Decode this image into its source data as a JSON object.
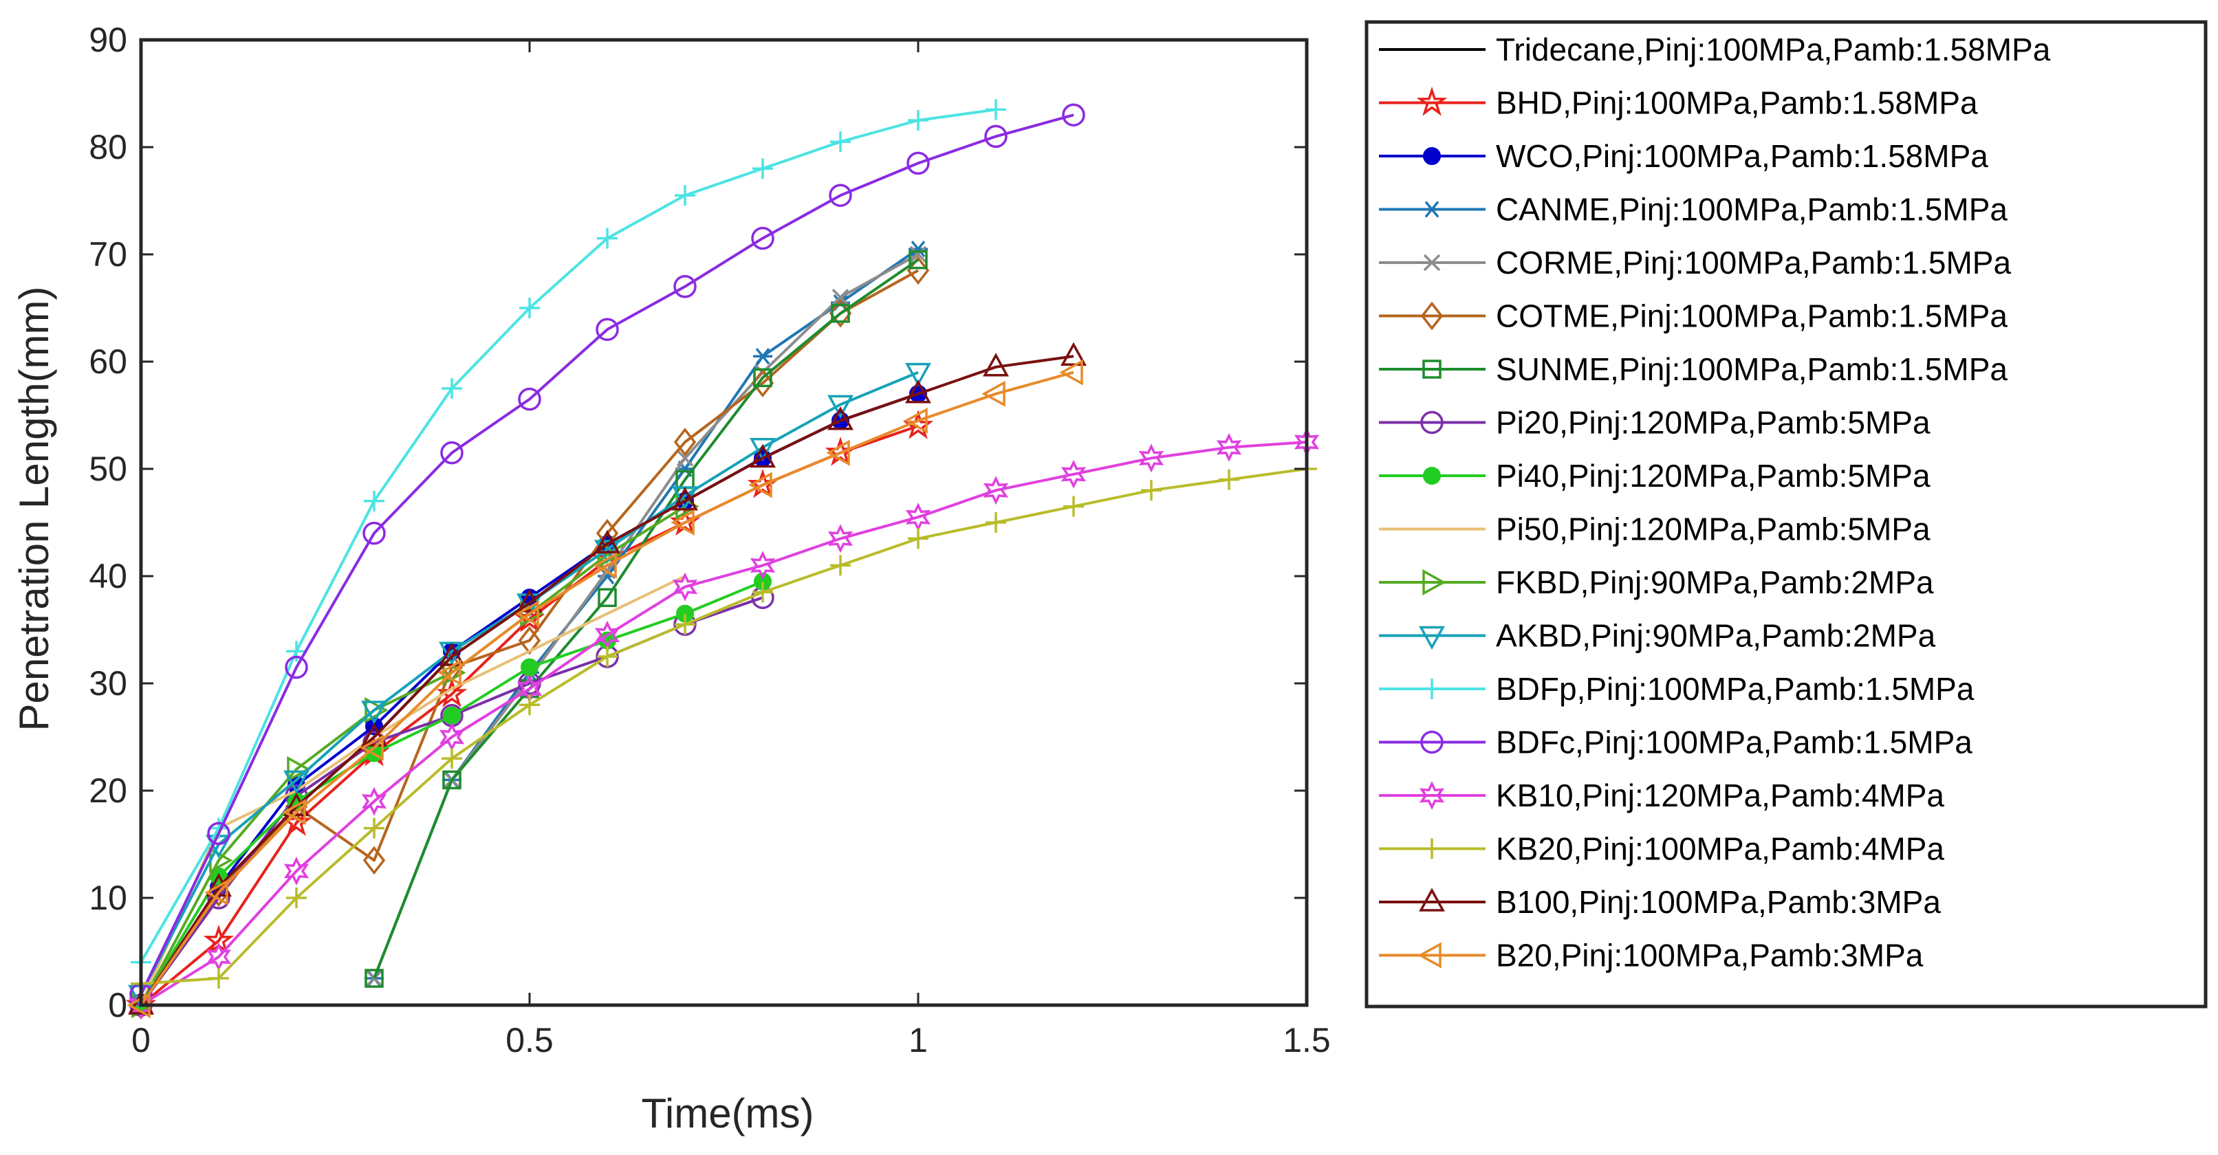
{
  "chart_data": {
    "type": "line",
    "title": "",
    "xlabel": "Time(ms)",
    "ylabel": "Penetration Length(mm)",
    "xlim": [
      0,
      1.5
    ],
    "ylim": [
      0,
      90
    ],
    "xticks": [
      0,
      0.5,
      1,
      1.5
    ],
    "xtick_labels": [
      "0",
      "0.5",
      "1",
      "1.5"
    ],
    "yticks": [
      0,
      10,
      20,
      30,
      40,
      50,
      60,
      70,
      80,
      90
    ],
    "ytick_labels": [
      "0",
      "10",
      "20",
      "30",
      "40",
      "50",
      "60",
      "70",
      "80",
      "90"
    ],
    "grid": false,
    "legend_position": "outside-right",
    "series": [
      {
        "name": "Tridecane,Pinj:100MPa,Pamb:1.58MPa",
        "color": "#000000",
        "marker": "none",
        "x": [
          0,
          0.1,
          0.2,
          0.3,
          0.4,
          0.5,
          0.6,
          0.7,
          0.8,
          0.9,
          1.0
        ],
        "y": [
          0,
          10.5,
          18.5,
          25,
          32.5,
          37.5,
          43,
          47,
          51,
          54.5,
          57
        ]
      },
      {
        "name": "BHD,Pinj:100MPa,Pamb:1.58MPa",
        "color": "#e8221c",
        "marker": "star",
        "x": [
          0,
          0.1,
          0.2,
          0.3,
          0.4,
          0.5,
          0.6,
          0.7,
          0.8,
          0.9,
          1.0
        ],
        "y": [
          0,
          6,
          17,
          23.5,
          29,
          36,
          41.5,
          45,
          48.5,
          51.5,
          54
        ]
      },
      {
        "name": "WCO,Pinj:100MPa,Pamb:1.58MPa",
        "color": "#0000cc",
        "marker": "dot",
        "x": [
          0,
          0.1,
          0.2,
          0.3,
          0.4,
          0.5,
          0.6,
          0.7,
          0.8,
          0.9,
          1.0
        ],
        "y": [
          0,
          11,
          20.5,
          26,
          33,
          38,
          43,
          47,
          51,
          54.5,
          57
        ]
      },
      {
        "name": "CANME,Pinj:100MPa,Pamb:1.5MPa",
        "color": "#1f77b4",
        "marker": "asterisk",
        "x": [
          0.3,
          0.4,
          0.5,
          0.6,
          0.7,
          0.8,
          0.9,
          1.0
        ],
        "y": [
          2.5,
          21,
          31,
          40,
          50,
          60.5,
          65.5,
          70.5
        ]
      },
      {
        "name": "CORME,Pinj:100MPa,Pamb:1.5MPa",
        "color": "#8c8c8c",
        "marker": "x",
        "x": [
          0.3,
          0.4,
          0.5,
          0.6,
          0.7,
          0.8,
          0.9,
          1.0
        ],
        "y": [
          2.5,
          21,
          30.5,
          40.5,
          51,
          59,
          66,
          70
        ]
      },
      {
        "name": "COTME,Pinj:100MPa,Pamb:1.5MPa",
        "color": "#b5651d",
        "marker": "diamond",
        "x": [
          0,
          0.1,
          0.2,
          0.3,
          0.4,
          0.5,
          0.6,
          0.7,
          0.8,
          0.9,
          1.0
        ],
        "y": [
          0,
          10.5,
          18.5,
          13.5,
          31.5,
          34,
          44,
          52.5,
          58,
          64.5,
          68.5
        ]
      },
      {
        "name": "SUNME,Pinj:100MPa,Pamb:1.5MPa",
        "color": "#1e8c2e",
        "marker": "square",
        "x": [
          0.3,
          0.4,
          0.5,
          0.6,
          0.7,
          0.8,
          0.9,
          1.0
        ],
        "y": [
          2.5,
          21,
          29.5,
          38,
          49,
          58.5,
          64.5,
          69.5
        ]
      },
      {
        "name": "Pi20,Pinj:120MPa,Pamb:5MPa",
        "color": "#7b2fa8",
        "marker": "circle",
        "x": [
          0,
          0.1,
          0.2,
          0.3,
          0.4,
          0.5,
          0.6,
          0.7,
          0.8
        ],
        "y": [
          0,
          10,
          19.5,
          24.5,
          27,
          30,
          32.5,
          35.5,
          38
        ]
      },
      {
        "name": "Pi40,Pinj:120MPa,Pamb:5MPa",
        "color": "#22cc22",
        "marker": "dot",
        "x": [
          0,
          0.1,
          0.2,
          0.3,
          0.4,
          0.5,
          0.6,
          0.7,
          0.8
        ],
        "y": [
          0,
          12,
          19,
          23.5,
          27,
          31.5,
          34,
          36.5,
          39.5
        ]
      },
      {
        "name": "Pi50,Pinj:120MPa,Pamb:5MPa",
        "color": "#e8c074",
        "marker": "none",
        "x": [
          0,
          0.1,
          0.2,
          0.3,
          0.4,
          0.5,
          0.6,
          0.7
        ],
        "y": [
          0,
          16.5,
          20,
          25,
          29.5,
          33,
          36.5,
          40
        ]
      },
      {
        "name": "FKBD,Pinj:90MPa,Pamb:2MPa",
        "color": "#55aa22",
        "marker": "tri-right",
        "x": [
          0,
          0.1,
          0.2,
          0.3,
          0.4,
          0.5,
          0.6,
          0.7
        ],
        "y": [
          0,
          13.5,
          22,
          27.5,
          31,
          36.5,
          42,
          46.5
        ]
      },
      {
        "name": "AKBD,Pinj:90MPa,Pamb:2MPa",
        "color": "#17a2b8",
        "marker": "tri-down",
        "x": [
          0,
          0.1,
          0.2,
          0.3,
          0.4,
          0.5,
          0.6,
          0.7,
          0.8,
          0.9,
          1.0
        ],
        "y": [
          1,
          15,
          21,
          27.5,
          33,
          37.5,
          42.5,
          47.5,
          52,
          56,
          59
        ]
      },
      {
        "name": "BDFp,Pinj:100MPa,Pamb:1.5MPa",
        "color": "#4de3e3",
        "marker": "plus",
        "x": [
          0,
          0.1,
          0.2,
          0.3,
          0.4,
          0.5,
          0.6,
          0.7,
          0.8,
          0.9,
          1.0,
          1.1
        ],
        "y": [
          4,
          16.5,
          33,
          47,
          57.5,
          65,
          71.5,
          75.5,
          78,
          80.5,
          82.5,
          83.5
        ]
      },
      {
        "name": "BDFc,Pinj:100MPa,Pamb:1.5MPa",
        "color": "#8a2be2",
        "marker": "circle",
        "x": [
          0,
          0.1,
          0.2,
          0.3,
          0.4,
          0.5,
          0.6,
          0.7,
          0.8,
          0.9,
          1.0,
          1.1,
          1.2
        ],
        "y": [
          1,
          16,
          31.5,
          44,
          51.5,
          56.5,
          63,
          67,
          71.5,
          75.5,
          78.5,
          81,
          83
        ]
      },
      {
        "name": "KB10,Pinj:120MPa,Pamb:4MPa",
        "color": "#e040e0",
        "marker": "hexagram",
        "x": [
          0,
          0.1,
          0.2,
          0.3,
          0.4,
          0.5,
          0.6,
          0.7,
          0.8,
          0.9,
          1.0,
          1.1,
          1.2,
          1.3,
          1.4,
          1.5
        ],
        "y": [
          0,
          4.5,
          12.5,
          19,
          25,
          29.5,
          34.5,
          39,
          41,
          43.5,
          45.5,
          48,
          49.5,
          51,
          52,
          52.5
        ]
      },
      {
        "name": "KB20,Pinj:100MPa,Pamb:4MPa",
        "color": "#b8bc2a",
        "marker": "plus",
        "x": [
          0,
          0.1,
          0.2,
          0.3,
          0.4,
          0.5,
          0.6,
          0.7,
          0.8,
          0.9,
          1.0,
          1.1,
          1.2,
          1.3,
          1.4,
          1.5
        ],
        "y": [
          2,
          2.5,
          10,
          16.5,
          23,
          28,
          32.5,
          35.5,
          38.5,
          41,
          43.5,
          45,
          46.5,
          48,
          49,
          50
        ]
      },
      {
        "name": "B100,Pinj:100MPa,Pamb:3MPa",
        "color": "#7a1010",
        "marker": "triangle",
        "x": [
          0,
          0.1,
          0.2,
          0.3,
          0.4,
          0.5,
          0.6,
          0.7,
          0.8,
          0.9,
          1.0,
          1.1,
          1.2
        ],
        "y": [
          0,
          11,
          18.5,
          25,
          32.5,
          37.5,
          43,
          47,
          51,
          54.5,
          57,
          59.5,
          60.5
        ]
      },
      {
        "name": "B20,Pinj:100MPa,Pamb:3MPa",
        "color": "#e88a2a",
        "marker": "tri-left",
        "x": [
          0,
          0.1,
          0.2,
          0.3,
          0.4,
          0.5,
          0.6,
          0.7,
          0.8,
          0.9,
          1.0,
          1.1,
          1.2
        ],
        "y": [
          0,
          10.5,
          18,
          24,
          31,
          36.5,
          41,
          45,
          48.5,
          51.5,
          54.5,
          57,
          59
        ]
      }
    ]
  }
}
